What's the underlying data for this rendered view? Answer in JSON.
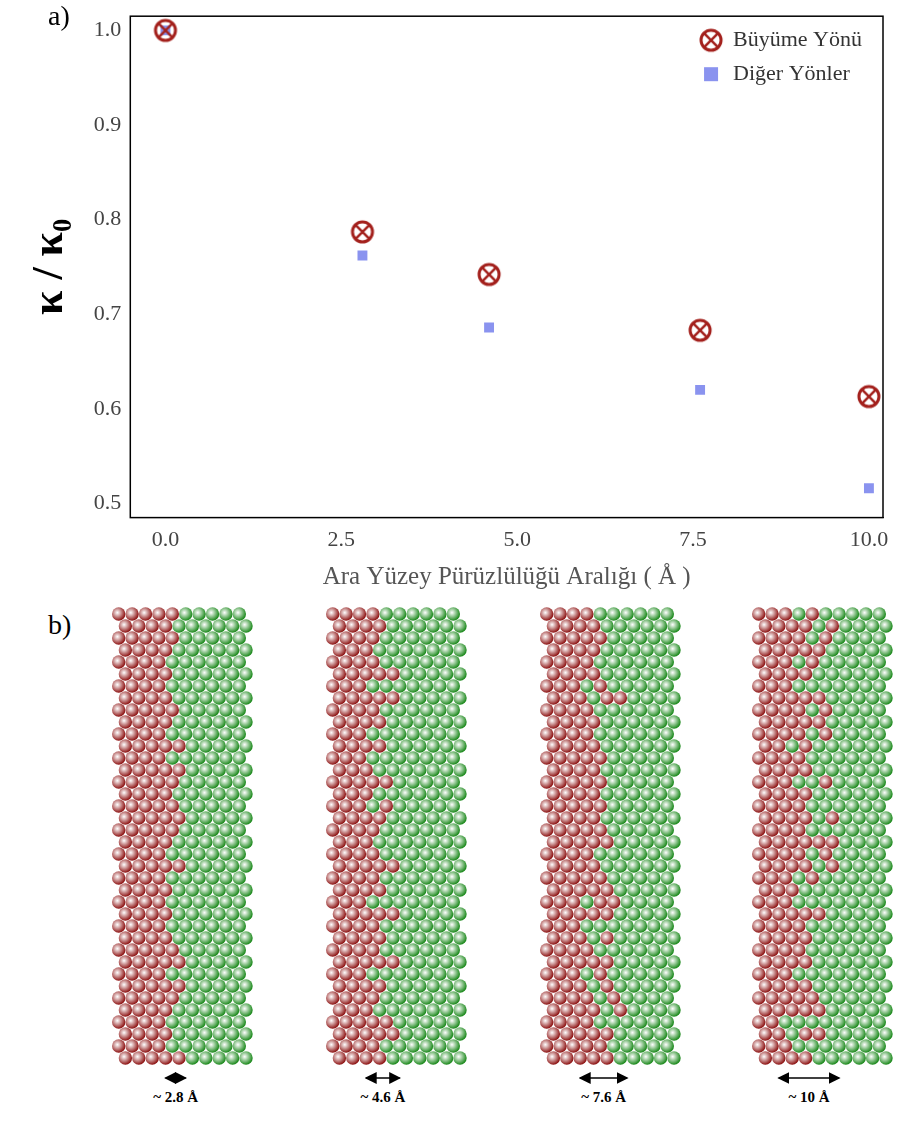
{
  "chart_data": {
    "type": "scatter",
    "panel_label": "a)",
    "x_label": "Ara Yüzey Pürüzlülüğü Aralığı ( Å )",
    "y_label": "κ / κ₀",
    "x": [
      0,
      2.8,
      4.6,
      7.6,
      10
    ],
    "series": [
      {
        "name": "Büyüme Yönü",
        "color": "#a3201c",
        "marker": "circle_x",
        "values": [
          1.0,
          0.787,
          0.742,
          0.683,
          0.613
        ]
      },
      {
        "name": "Diğer Yönler",
        "color": "#8a93ef",
        "marker": "square",
        "values": [
          1.0,
          0.762,
          0.686,
          0.62,
          0.516
        ]
      }
    ],
    "xlim": [
      -0.5,
      10.2
    ],
    "xticks": [
      {
        "value": 0,
        "label": "0.0"
      },
      {
        "value": 2.5,
        "label": "2.5"
      },
      {
        "value": 5,
        "label": "5.0"
      },
      {
        "value": 7.5,
        "label": "7.5"
      },
      {
        "value": 10,
        "label": "10.0"
      }
    ],
    "ylim": [
      0.485,
      1.015
    ],
    "yticks": [
      {
        "value": 0.5,
        "label": "0.5"
      },
      {
        "value": 0.6,
        "label": "0.6"
      },
      {
        "value": 0.7,
        "label": "0.7"
      },
      {
        "value": 0.8,
        "label": "0.8"
      },
      {
        "value": 0.9,
        "label": "0.9"
      },
      {
        "value": 1.0,
        "label": "1.0"
      }
    ],
    "grid": false,
    "legend": "top-right"
  },
  "panel_b": {
    "label": "b)",
    "structures": [
      {
        "label": "~ 2.8 Å"
      },
      {
        "label": "~ 4.6 Å"
      },
      {
        "label": "~ 7.6 Å"
      },
      {
        "label": "~ 10 Å"
      }
    ]
  }
}
